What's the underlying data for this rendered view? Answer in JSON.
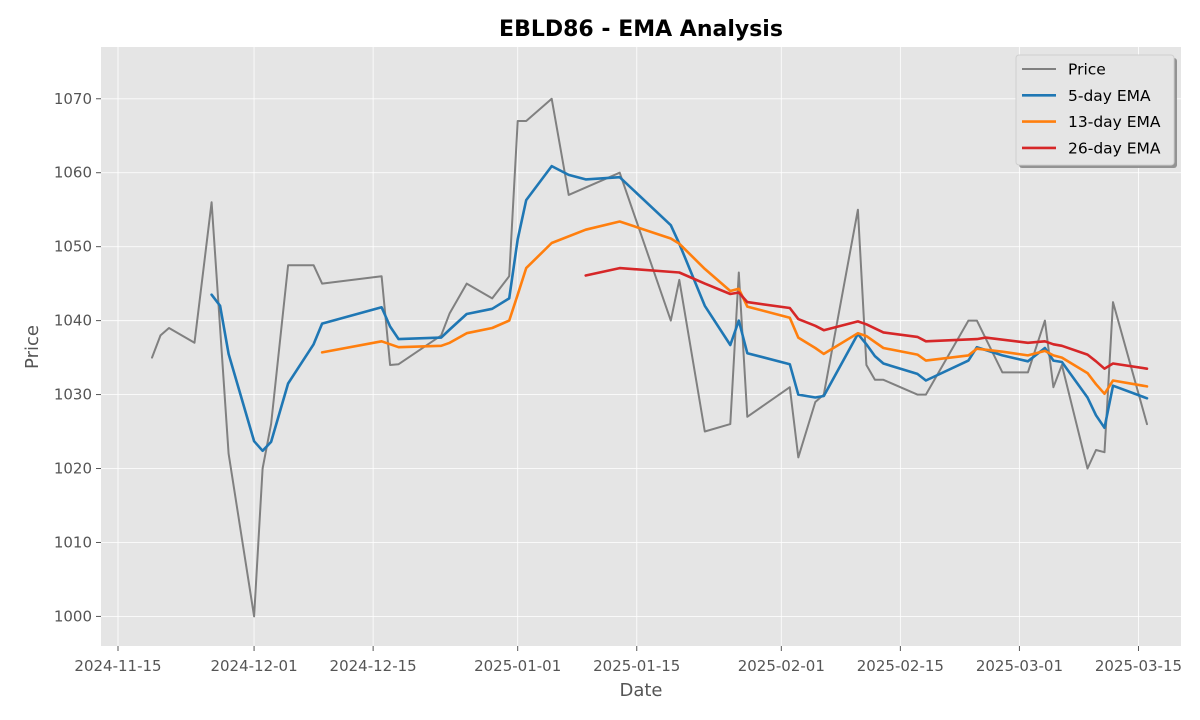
{
  "chart_data": {
    "type": "line",
    "title": "EBLD86 - EMA Analysis",
    "xlabel": "Date",
    "ylabel": "Price",
    "xlim": [
      "2024-11-13",
      "2025-03-20"
    ],
    "ylim": [
      996,
      1077
    ],
    "x_ticks": [
      "2024-11-15",
      "2024-12-01",
      "2024-12-15",
      "2025-01-01",
      "2025-01-15",
      "2025-02-01",
      "2025-02-15",
      "2025-03-01",
      "2025-03-15"
    ],
    "y_ticks": [
      1000,
      1010,
      1020,
      1030,
      1040,
      1050,
      1060,
      1070
    ],
    "grid": true,
    "legend": "upper right",
    "series": [
      {
        "name": "Price",
        "color": "#808080",
        "points": [
          [
            "2024-11-19",
            1035
          ],
          [
            "2024-11-20",
            1038
          ],
          [
            "2024-11-21",
            1039
          ],
          [
            "2024-11-24",
            1037
          ],
          [
            "2024-11-26",
            1056
          ],
          [
            "2024-11-28",
            1022
          ],
          [
            "2024-12-01",
            1000
          ],
          [
            "2024-12-02",
            1020
          ],
          [
            "2024-12-03",
            1026
          ],
          [
            "2024-12-05",
            1047.5
          ],
          [
            "2024-12-08",
            1047.5
          ],
          [
            "2024-12-09",
            1045
          ],
          [
            "2024-12-16",
            1046
          ],
          [
            "2024-12-17",
            1034
          ],
          [
            "2024-12-18",
            1034.1
          ],
          [
            "2024-12-23",
            1038
          ],
          [
            "2024-12-24",
            1041
          ],
          [
            "2024-12-26",
            1045
          ],
          [
            "2024-12-29",
            1043
          ],
          [
            "2024-12-31",
            1046
          ],
          [
            "2025-01-01",
            1067
          ],
          [
            "2025-01-02",
            1067
          ],
          [
            "2025-01-05",
            1070
          ],
          [
            "2025-01-07",
            1057
          ],
          [
            "2025-01-13",
            1060
          ],
          [
            "2025-01-19",
            1040
          ],
          [
            "2025-01-20",
            1045.5
          ],
          [
            "2025-01-23",
            1025
          ],
          [
            "2025-01-26",
            1026
          ],
          [
            "2025-01-27",
            1046.5
          ],
          [
            "2025-01-28",
            1027
          ],
          [
            "2025-02-02",
            1031
          ],
          [
            "2025-02-03",
            1021.5
          ],
          [
            "2025-02-05",
            1029
          ],
          [
            "2025-02-06",
            1030
          ],
          [
            "2025-02-10",
            1055
          ],
          [
            "2025-02-11",
            1034
          ],
          [
            "2025-02-12",
            1032
          ],
          [
            "2025-02-13",
            1032
          ],
          [
            "2025-02-17",
            1030
          ],
          [
            "2025-02-18",
            1030
          ],
          [
            "2025-02-23",
            1040
          ],
          [
            "2025-02-24",
            1040
          ],
          [
            "2025-02-27",
            1033
          ],
          [
            "2025-03-02",
            1033
          ],
          [
            "2025-03-04",
            1040
          ],
          [
            "2025-03-05",
            1031
          ],
          [
            "2025-03-06",
            1034
          ],
          [
            "2025-03-09",
            1020
          ],
          [
            "2025-03-10",
            1022.5
          ],
          [
            "2025-03-11",
            1022.2
          ],
          [
            "2025-03-12",
            1042.5
          ],
          [
            "2025-03-16",
            1026
          ]
        ]
      },
      {
        "name": "5-day EMA",
        "color": "#1f77b4",
        "points": [
          [
            "2024-11-26",
            1043.5
          ],
          [
            "2024-11-27",
            1042
          ],
          [
            "2024-11-28",
            1035.5
          ],
          [
            "2024-12-01",
            1023.7
          ],
          [
            "2024-12-02",
            1022.4
          ],
          [
            "2024-12-03",
            1023.6
          ],
          [
            "2024-12-05",
            1031.5
          ],
          [
            "2024-12-08",
            1036.8
          ],
          [
            "2024-12-09",
            1039.6
          ],
          [
            "2024-12-16",
            1041.8
          ],
          [
            "2024-12-17",
            1039.2
          ],
          [
            "2024-12-18",
            1037.5
          ],
          [
            "2024-12-23",
            1037.7
          ],
          [
            "2024-12-24",
            1038.8
          ],
          [
            "2024-12-26",
            1040.9
          ],
          [
            "2024-12-29",
            1041.6
          ],
          [
            "2024-12-31",
            1043
          ],
          [
            "2025-01-01",
            1051
          ],
          [
            "2025-01-02",
            1056.3
          ],
          [
            "2025-01-05",
            1060.9
          ],
          [
            "2025-01-07",
            1059.7
          ],
          [
            "2025-01-09",
            1059.1
          ],
          [
            "2025-01-13",
            1059.4
          ],
          [
            "2025-01-19",
            1052.9
          ],
          [
            "2025-01-20",
            1050.4
          ],
          [
            "2025-01-23",
            1042
          ],
          [
            "2025-01-26",
            1036.7
          ],
          [
            "2025-01-27",
            1040
          ],
          [
            "2025-01-28",
            1035.6
          ],
          [
            "2025-02-02",
            1034.1
          ],
          [
            "2025-02-03",
            1030
          ],
          [
            "2025-02-05",
            1029.6
          ],
          [
            "2025-02-06",
            1029.8
          ],
          [
            "2025-02-10",
            1038.2
          ],
          [
            "2025-02-11",
            1036.8
          ],
          [
            "2025-02-12",
            1035.2
          ],
          [
            "2025-02-13",
            1034.2
          ],
          [
            "2025-02-17",
            1032.8
          ],
          [
            "2025-02-18",
            1031.9
          ],
          [
            "2025-02-23",
            1034.6
          ],
          [
            "2025-02-24",
            1036.4
          ],
          [
            "2025-02-27",
            1035.3
          ],
          [
            "2025-03-02",
            1034.5
          ],
          [
            "2025-03-04",
            1036.3
          ],
          [
            "2025-03-05",
            1034.6
          ],
          [
            "2025-03-06",
            1034.4
          ],
          [
            "2025-03-09",
            1029.6
          ],
          [
            "2025-03-10",
            1027.2
          ],
          [
            "2025-03-11",
            1025.5
          ],
          [
            "2025-03-12",
            1031.2
          ],
          [
            "2025-03-16",
            1029.5
          ]
        ]
      },
      {
        "name": "13-day EMA",
        "color": "#ff7f0e",
        "points": [
          [
            "2024-12-09",
            1035.7
          ],
          [
            "2024-12-16",
            1037.2
          ],
          [
            "2024-12-18",
            1036.4
          ],
          [
            "2024-12-23",
            1036.6
          ],
          [
            "2024-12-24",
            1037
          ],
          [
            "2024-12-26",
            1038.3
          ],
          [
            "2024-12-29",
            1039
          ],
          [
            "2024-12-31",
            1040
          ],
          [
            "2025-01-01",
            1043.5
          ],
          [
            "2025-01-02",
            1047.1
          ],
          [
            "2025-01-05",
            1050.5
          ],
          [
            "2025-01-09",
            1052.3
          ],
          [
            "2025-01-13",
            1053.4
          ],
          [
            "2025-01-19",
            1051.1
          ],
          [
            "2025-01-20",
            1050.4
          ],
          [
            "2025-01-23",
            1047
          ],
          [
            "2025-01-26",
            1044
          ],
          [
            "2025-01-27",
            1044.3
          ],
          [
            "2025-01-28",
            1041.9
          ],
          [
            "2025-02-02",
            1040.4
          ],
          [
            "2025-02-03",
            1037.7
          ],
          [
            "2025-02-05",
            1036.3
          ],
          [
            "2025-02-06",
            1035.5
          ],
          [
            "2025-02-10",
            1038.3
          ],
          [
            "2025-02-11",
            1037.9
          ],
          [
            "2025-02-13",
            1036.3
          ],
          [
            "2025-02-17",
            1035.4
          ],
          [
            "2025-02-18",
            1034.6
          ],
          [
            "2025-02-23",
            1035.3
          ],
          [
            "2025-02-24",
            1036.2
          ],
          [
            "2025-02-27",
            1035.8
          ],
          [
            "2025-03-02",
            1035.3
          ],
          [
            "2025-03-04",
            1035.9
          ],
          [
            "2025-03-05",
            1035.3
          ],
          [
            "2025-03-06",
            1035
          ],
          [
            "2025-03-09",
            1032.9
          ],
          [
            "2025-03-10",
            1031.4
          ],
          [
            "2025-03-11",
            1030.1
          ],
          [
            "2025-03-12",
            1031.9
          ],
          [
            "2025-03-16",
            1031.1
          ]
        ]
      },
      {
        "name": "26-day EMA",
        "color": "#d62728",
        "points": [
          [
            "2025-01-09",
            1046.1
          ],
          [
            "2025-01-13",
            1047.1
          ],
          [
            "2025-01-20",
            1046.5
          ],
          [
            "2025-01-23",
            1045
          ],
          [
            "2025-01-26",
            1043.6
          ],
          [
            "2025-01-27",
            1043.8
          ],
          [
            "2025-01-28",
            1042.5
          ],
          [
            "2025-02-02",
            1041.7
          ],
          [
            "2025-02-03",
            1040.2
          ],
          [
            "2025-02-05",
            1039.3
          ],
          [
            "2025-02-06",
            1038.7
          ],
          [
            "2025-02-10",
            1039.9
          ],
          [
            "2025-02-11",
            1039.5
          ],
          [
            "2025-02-13",
            1038.4
          ],
          [
            "2025-02-17",
            1037.8
          ],
          [
            "2025-02-18",
            1037.2
          ],
          [
            "2025-02-24",
            1037.5
          ],
          [
            "2025-02-25",
            1037.7
          ],
          [
            "2025-03-02",
            1037
          ],
          [
            "2025-03-04",
            1037.2
          ],
          [
            "2025-03-05",
            1036.8
          ],
          [
            "2025-03-06",
            1036.6
          ],
          [
            "2025-03-09",
            1035.4
          ],
          [
            "2025-03-10",
            1034.5
          ],
          [
            "2025-03-11",
            1033.5
          ],
          [
            "2025-03-12",
            1034.2
          ],
          [
            "2025-03-16",
            1033.5
          ]
        ]
      }
    ]
  }
}
